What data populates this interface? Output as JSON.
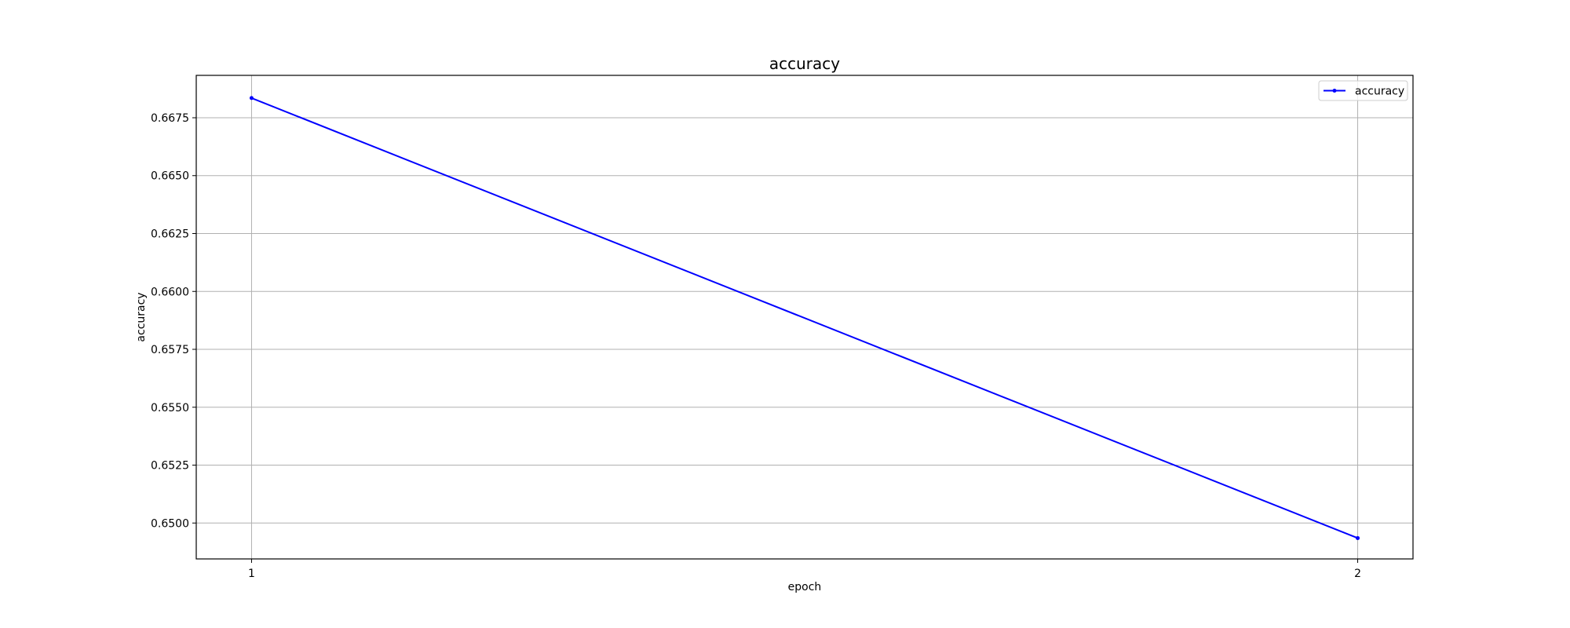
{
  "chart_data": {
    "type": "line",
    "title": "accuracy",
    "xlabel": "epoch",
    "ylabel": "accuracy",
    "x": [
      1,
      2
    ],
    "x_ticks": [
      "1",
      "2"
    ],
    "y_ticks": [
      "0.6500",
      "0.6525",
      "0.6550",
      "0.6575",
      "0.6600",
      "0.6625",
      "0.6650",
      "0.6675"
    ],
    "ylim": [
      0.64845,
      0.66933
    ],
    "xlim": [
      0.95,
      2.05
    ],
    "grid": true,
    "legend_position": "upper right",
    "series": [
      {
        "name": "accuracy",
        "color": "#0000ff",
        "marker": "point",
        "values": [
          0.66835,
          0.64935
        ]
      }
    ]
  }
}
